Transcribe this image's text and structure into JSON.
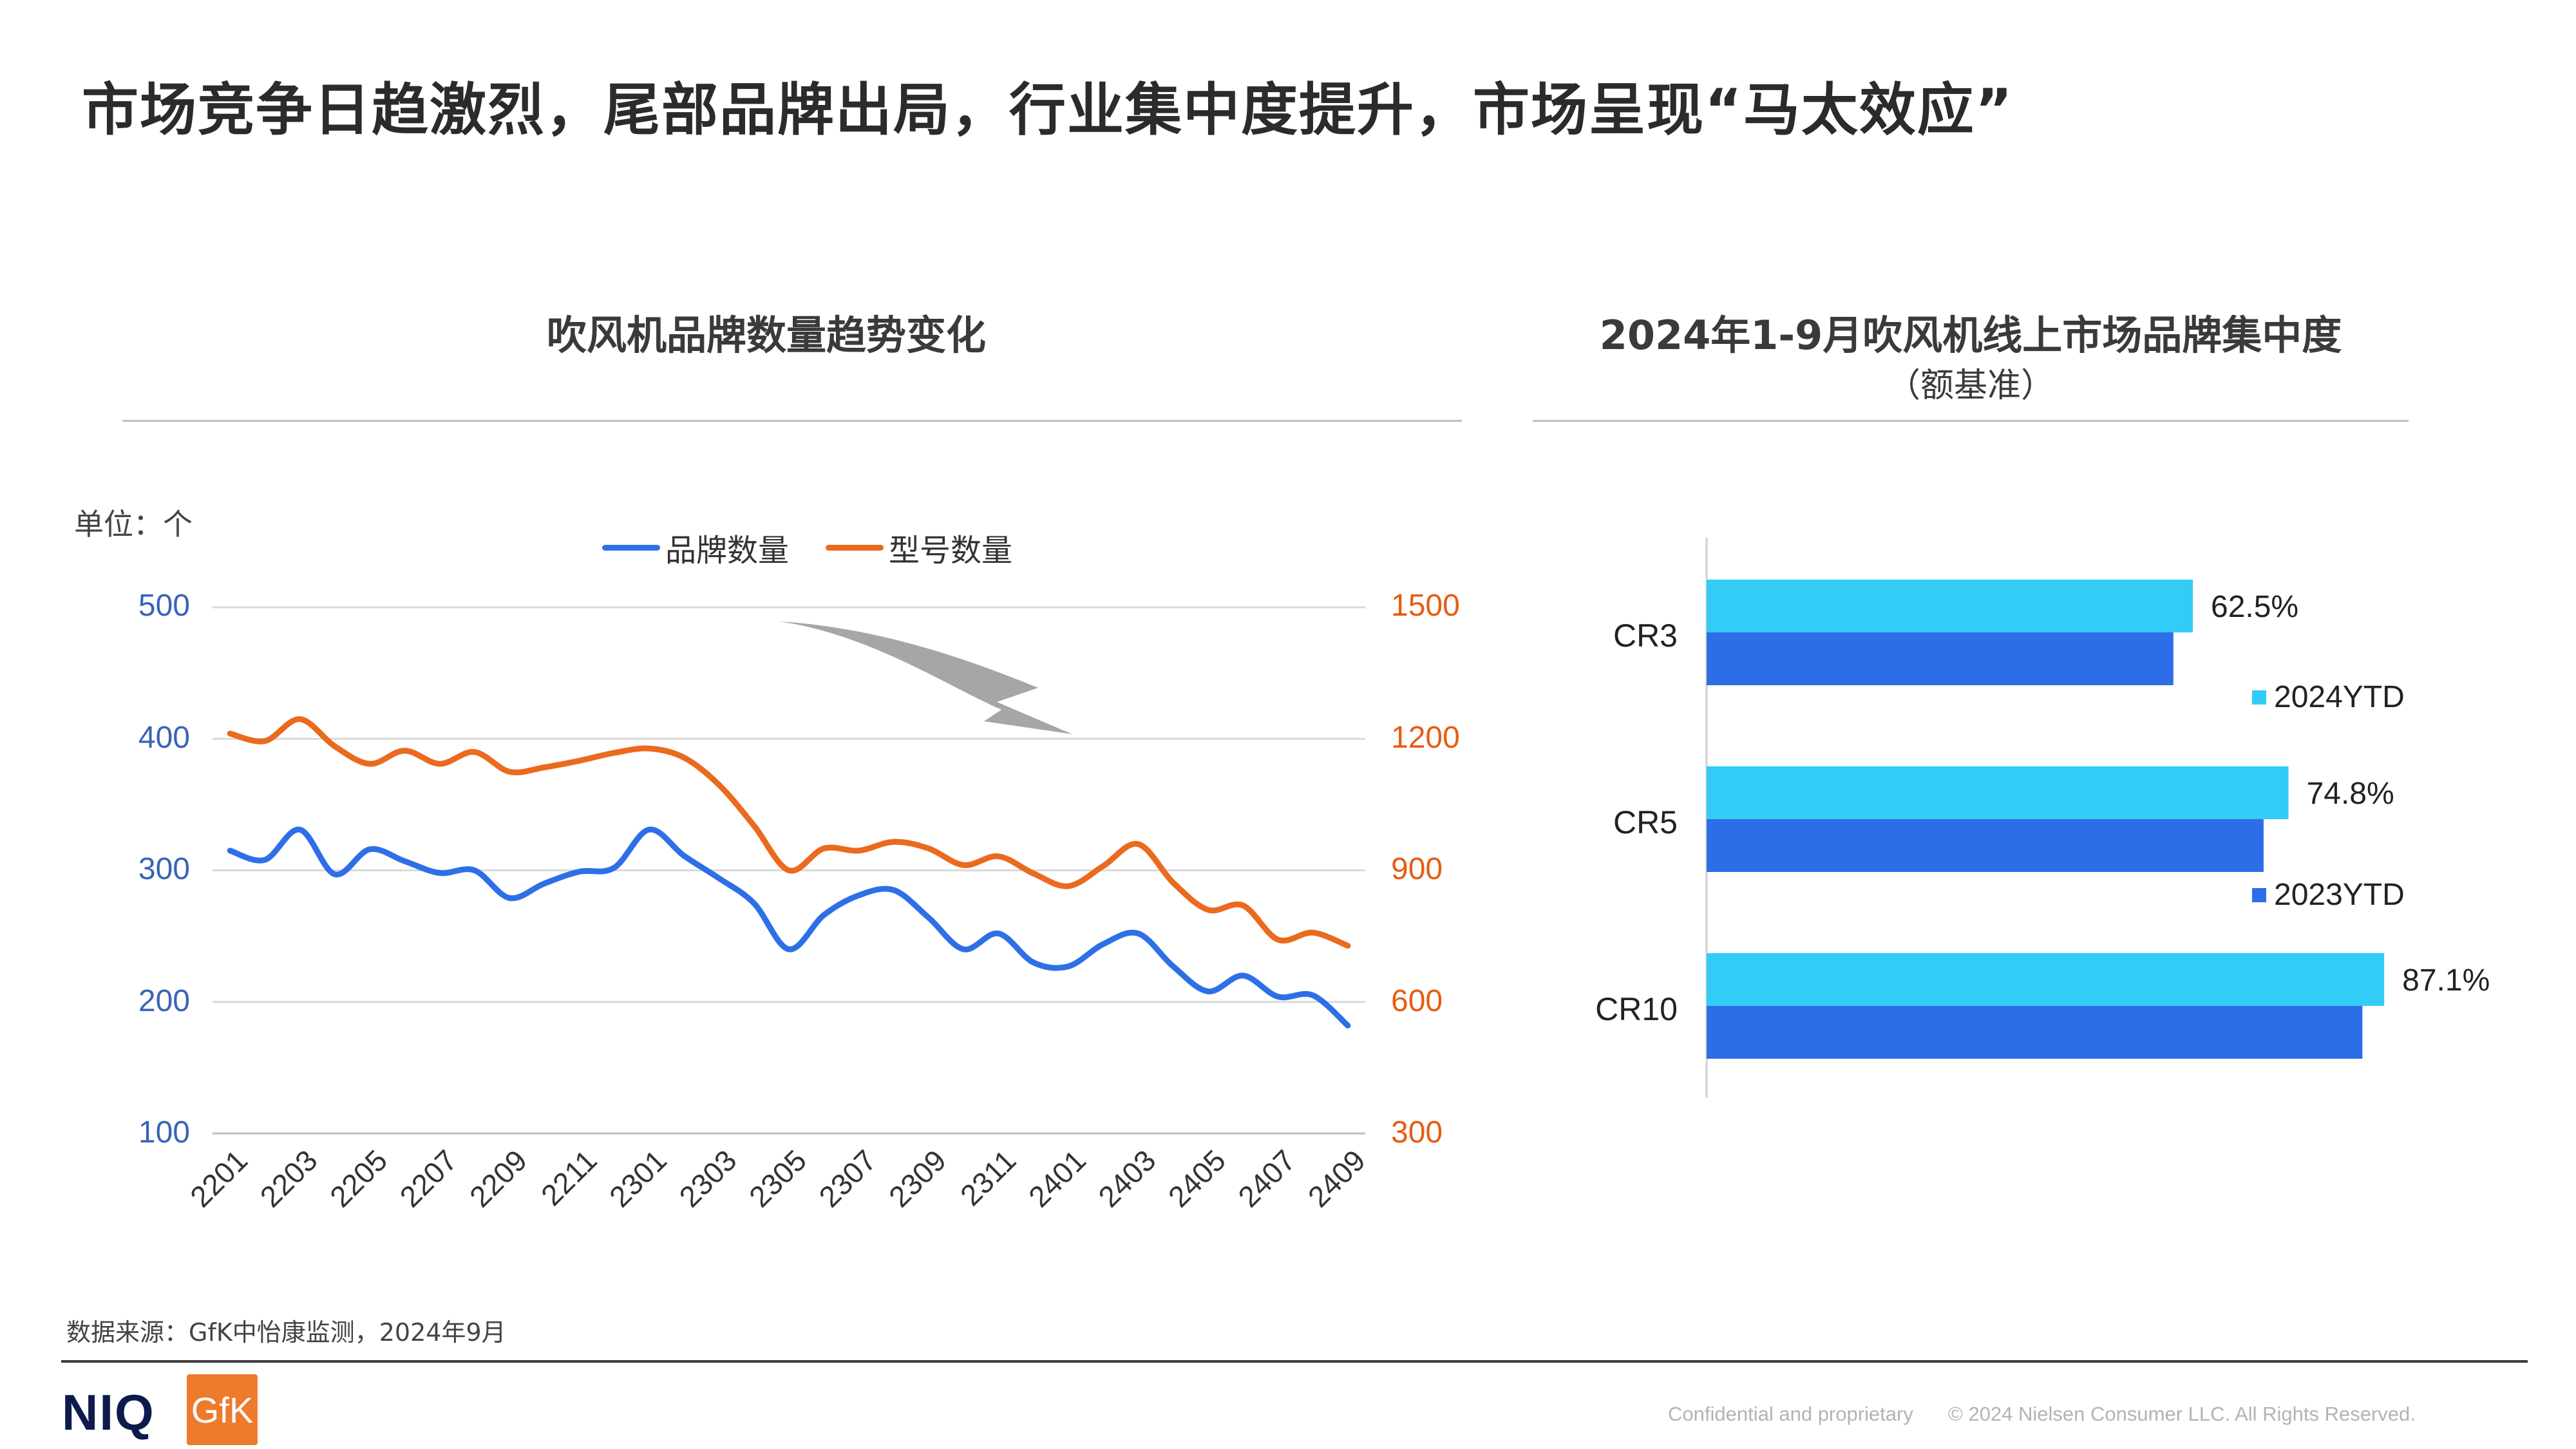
{
  "page": {
    "title": "市场竞争日趋激烈，尾部品牌出局，行业集中度提升，市场呈现“马太效应”",
    "source": "数据来源：GfK中怡康监测，2024年9月",
    "footer_confidential": "Confidential and proprietary",
    "footer_copyright": "© 2024 Nielsen Consumer LLC. All Rights Reserved.",
    "logo_niq": "NIQ",
    "logo_gfk": "GfK"
  },
  "left_panel": {
    "title": "吹风机品牌数量趋势变化",
    "unit": "单位：个"
  },
  "right_panel": {
    "title": "2024年1-9月吹风机线上市场品牌集中度",
    "subtitle": "（额基准）"
  },
  "colors": {
    "brand_line": "#2e6fe8",
    "model_line": "#ea6a1e",
    "bar_2024": "#33ccf7",
    "bar_2023": "#2e6de8",
    "grid": "#d9d9d9",
    "arrow": "#a6a6a6"
  },
  "chart_data": [
    {
      "type": "line",
      "title": "吹风机品牌数量趋势变化",
      "x": [
        "2201",
        "2202",
        "2203",
        "2204",
        "2205",
        "2206",
        "2207",
        "2208",
        "2209",
        "2210",
        "2211",
        "2212",
        "2301",
        "2302",
        "2303",
        "2304",
        "2305",
        "2306",
        "2307",
        "2308",
        "2309",
        "2310",
        "2311",
        "2312",
        "2401",
        "2402",
        "2403",
        "2404",
        "2405",
        "2406",
        "2407",
        "2408",
        "2409"
      ],
      "x_tick_labels": [
        "2201",
        "2203",
        "2205",
        "2207",
        "2209",
        "2211",
        "2301",
        "2303",
        "2305",
        "2307",
        "2309",
        "2311",
        "2401",
        "2403",
        "2405",
        "2407",
        "2409"
      ],
      "series": [
        {
          "name": "品牌数量",
          "axis": "left",
          "values": [
            315,
            308,
            331,
            297,
            316,
            307,
            298,
            300,
            279,
            290,
            299,
            302,
            331,
            311,
            294,
            275,
            240,
            266,
            281,
            285,
            264,
            240,
            252,
            230,
            227,
            244,
            252,
            227,
            208,
            220,
            204,
            205,
            182
          ]
        },
        {
          "name": "型号数量",
          "axis": "right",
          "values": [
            1212,
            1195,
            1245,
            1183,
            1143,
            1173,
            1143,
            1170,
            1125,
            1135,
            1150,
            1168,
            1178,
            1157,
            1095,
            1002,
            900,
            950,
            945,
            965,
            950,
            912,
            932,
            893,
            864,
            910,
            960,
            872,
            810,
            820,
            742,
            758,
            728
          ]
        }
      ],
      "y_left": {
        "min": 100,
        "max": 500,
        "ticks": [
          100,
          200,
          300,
          400,
          500
        ]
      },
      "y_right": {
        "min": 300,
        "max": 1500,
        "ticks": [
          300,
          600,
          900,
          1200,
          1500
        ]
      },
      "legend": "top-center",
      "grid": true
    },
    {
      "type": "bar",
      "orientation": "horizontal",
      "title": "2024年1-9月吹风机线上市场品牌集中度",
      "categories": [
        "CR3",
        "CR5",
        "CR10"
      ],
      "series": [
        {
          "name": "2024YTD",
          "values": [
            62.5,
            74.8,
            87.1
          ],
          "labels": [
            "62.5%",
            "74.8%",
            "87.1%"
          ]
        },
        {
          "name": "2023YTD",
          "values": [
            60.0,
            71.6,
            84.3
          ]
        }
      ],
      "legend": "right"
    }
  ]
}
